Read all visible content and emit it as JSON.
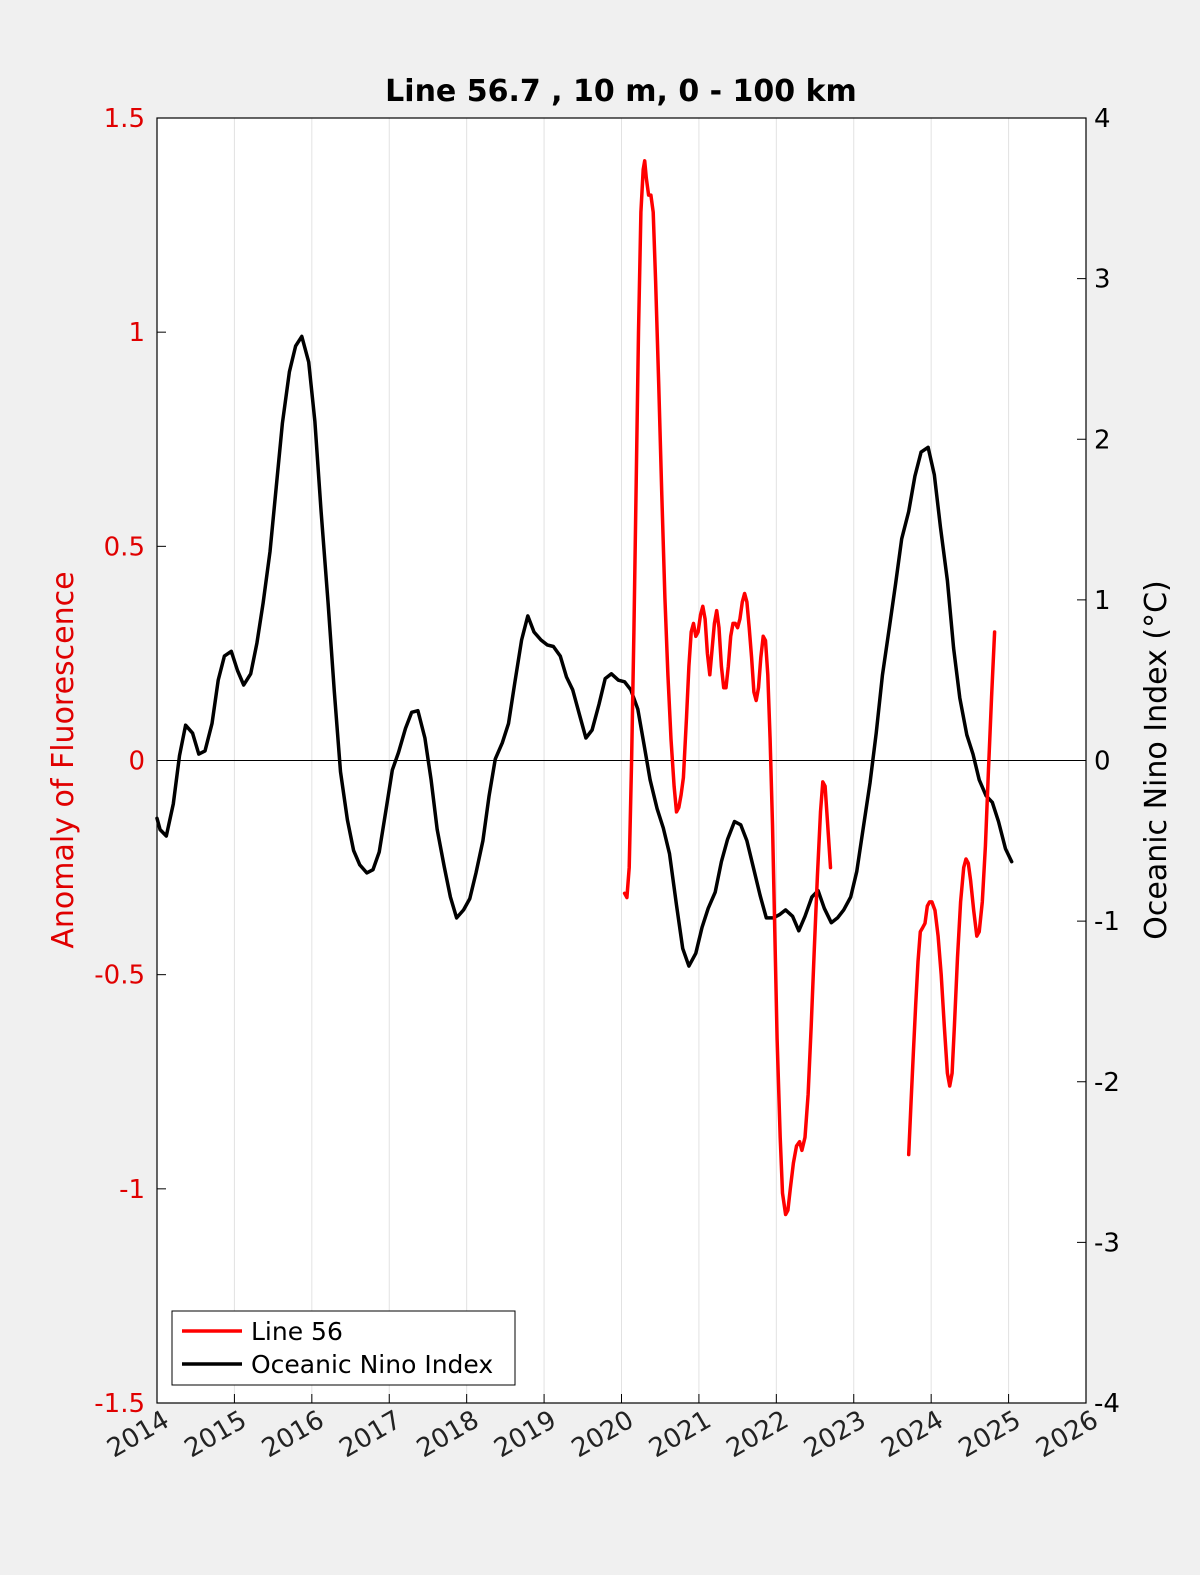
{
  "chart_data": {
    "type": "line",
    "title": "Line 56.7 , 10 m, 0 - 100 km",
    "xlabel": "",
    "ylabel_left": "Anomaly of Fluorescence",
    "ylabel_right": "Oceanic Nino Index (°C)",
    "xlim": [
      2014,
      2026
    ],
    "ylim_left": [
      -1.5,
      1.5
    ],
    "ylim_right": [
      -4,
      4
    ],
    "x_ticks": [
      2014,
      2015,
      2016,
      2017,
      2018,
      2019,
      2020,
      2021,
      2022,
      2023,
      2024,
      2025,
      2026
    ],
    "x_tick_labels": [
      "2014",
      "2015",
      "2016",
      "2017",
      "2018",
      "2019",
      "2020",
      "2021",
      "2022",
      "2023",
      "2024",
      "2025",
      "2026"
    ],
    "y_left_ticks": [
      -1.5,
      -1,
      -0.5,
      0,
      0.5,
      1,
      1.5
    ],
    "y_left_tick_labels": [
      "-1.5",
      "-1",
      "-0.5",
      "0",
      "0.5",
      "1",
      "1.5"
    ],
    "y_right_ticks": [
      -4,
      -3,
      -2,
      -1,
      0,
      1,
      2,
      3,
      4
    ],
    "y_right_tick_labels": [
      "-4",
      "-3",
      "-2",
      "-1",
      "0",
      "1",
      "2",
      "3",
      "4"
    ],
    "grid": "x-only",
    "zero_line": true,
    "legend_position": "bottom-left",
    "colors": {
      "left_axis": "#e00000",
      "right_axis": "#000000",
      "grid": "#e2e2e2",
      "figure_bg": "#f0f0f0",
      "axes_bg": "#ffffff"
    },
    "series": [
      {
        "name": "Line 56",
        "axis": "left",
        "color": "#ff0000",
        "segments": [
          [
            [
              2020.04,
              -0.31
            ],
            [
              2020.07,
              -0.32
            ],
            [
              2020.1,
              -0.25
            ],
            [
              2020.13,
              0.0
            ],
            [
              2020.16,
              0.3
            ],
            [
              2020.19,
              0.65
            ],
            [
              2020.22,
              1.0
            ],
            [
              2020.25,
              1.28
            ],
            [
              2020.28,
              1.38
            ],
            [
              2020.3,
              1.4
            ],
            [
              2020.32,
              1.36
            ],
            [
              2020.35,
              1.32
            ],
            [
              2020.38,
              1.32
            ],
            [
              2020.41,
              1.28
            ],
            [
              2020.44,
              1.12
            ],
            [
              2020.48,
              0.88
            ],
            [
              2020.52,
              0.62
            ],
            [
              2020.56,
              0.38
            ],
            [
              2020.6,
              0.2
            ],
            [
              2020.64,
              0.05
            ],
            [
              2020.68,
              -0.06
            ],
            [
              2020.71,
              -0.12
            ],
            [
              2020.74,
              -0.11
            ],
            [
              2020.77,
              -0.08
            ],
            [
              2020.8,
              -0.04
            ],
            [
              2020.84,
              0.1
            ],
            [
              2020.87,
              0.22
            ],
            [
              2020.9,
              0.3
            ],
            [
              2020.93,
              0.32
            ],
            [
              2020.96,
              0.29
            ],
            [
              2020.99,
              0.3
            ],
            [
              2021.02,
              0.34
            ],
            [
              2021.05,
              0.36
            ],
            [
              2021.08,
              0.33
            ],
            [
              2021.11,
              0.25
            ],
            [
              2021.14,
              0.2
            ],
            [
              2021.17,
              0.26
            ],
            [
              2021.2,
              0.32
            ],
            [
              2021.23,
              0.35
            ],
            [
              2021.26,
              0.31
            ],
            [
              2021.29,
              0.22
            ],
            [
              2021.32,
              0.17
            ],
            [
              2021.35,
              0.17
            ],
            [
              2021.38,
              0.22
            ],
            [
              2021.41,
              0.29
            ],
            [
              2021.44,
              0.32
            ],
            [
              2021.47,
              0.32
            ],
            [
              2021.5,
              0.31
            ],
            [
              2021.53,
              0.33
            ],
            [
              2021.56,
              0.37
            ],
            [
              2021.59,
              0.39
            ],
            [
              2021.62,
              0.37
            ],
            [
              2021.65,
              0.31
            ],
            [
              2021.68,
              0.24
            ],
            [
              2021.71,
              0.16
            ],
            [
              2021.74,
              0.14
            ],
            [
              2021.77,
              0.17
            ],
            [
              2021.8,
              0.24
            ],
            [
              2021.83,
              0.29
            ],
            [
              2021.86,
              0.28
            ],
            [
              2021.89,
              0.2
            ],
            [
              2021.92,
              0.05
            ],
            [
              2021.95,
              -0.15
            ],
            [
              2021.98,
              -0.4
            ],
            [
              2022.01,
              -0.65
            ],
            [
              2022.05,
              -0.88
            ],
            [
              2022.08,
              -1.01
            ],
            [
              2022.12,
              -1.06
            ],
            [
              2022.15,
              -1.05
            ],
            [
              2022.18,
              -1.0
            ],
            [
              2022.22,
              -0.94
            ],
            [
              2022.26,
              -0.9
            ],
            [
              2022.3,
              -0.89
            ],
            [
              2022.33,
              -0.91
            ],
            [
              2022.37,
              -0.88
            ],
            [
              2022.41,
              -0.78
            ],
            [
              2022.45,
              -0.62
            ],
            [
              2022.49,
              -0.44
            ],
            [
              2022.53,
              -0.27
            ],
            [
              2022.57,
              -0.12
            ],
            [
              2022.6,
              -0.05
            ],
            [
              2022.63,
              -0.06
            ],
            [
              2022.66,
              -0.14
            ],
            [
              2022.7,
              -0.25
            ]
          ],
          [
            [
              2023.71,
              -0.92
            ],
            [
              2023.74,
              -0.8
            ],
            [
              2023.77,
              -0.68
            ],
            [
              2023.8,
              -0.57
            ],
            [
              2023.83,
              -0.47
            ],
            [
              2023.86,
              -0.4
            ],
            [
              2023.89,
              -0.39
            ],
            [
              2023.92,
              -0.38
            ],
            [
              2023.95,
              -0.34
            ],
            [
              2023.98,
              -0.33
            ],
            [
              2024.01,
              -0.33
            ],
            [
              2024.05,
              -0.35
            ],
            [
              2024.09,
              -0.41
            ],
            [
              2024.13,
              -0.5
            ],
            [
              2024.17,
              -0.62
            ],
            [
              2024.21,
              -0.73
            ],
            [
              2024.24,
              -0.76
            ],
            [
              2024.27,
              -0.73
            ],
            [
              2024.3,
              -0.62
            ],
            [
              2024.34,
              -0.46
            ],
            [
              2024.38,
              -0.33
            ],
            [
              2024.42,
              -0.25
            ],
            [
              2024.45,
              -0.23
            ],
            [
              2024.48,
              -0.24
            ],
            [
              2024.51,
              -0.28
            ],
            [
              2024.55,
              -0.35
            ],
            [
              2024.59,
              -0.41
            ],
            [
              2024.62,
              -0.4
            ],
            [
              2024.66,
              -0.33
            ],
            [
              2024.7,
              -0.2
            ],
            [
              2024.74,
              -0.02
            ],
            [
              2024.78,
              0.15
            ],
            [
              2024.82,
              0.3
            ]
          ]
        ]
      },
      {
        "name": "Oceanic Nino Index",
        "axis": "right",
        "color": "#000000",
        "segments": [
          [
            [
              2014.0,
              -0.36
            ],
            [
              2014.04,
              -0.43
            ],
            [
              2014.12,
              -0.47
            ],
            [
              2014.21,
              -0.27
            ],
            [
              2014.29,
              0.03
            ],
            [
              2014.37,
              0.22
            ],
            [
              2014.46,
              0.17
            ],
            [
              2014.54,
              0.04
            ],
            [
              2014.62,
              0.06
            ],
            [
              2014.71,
              0.23
            ],
            [
              2014.79,
              0.5
            ],
            [
              2014.87,
              0.65
            ],
            [
              2014.96,
              0.68
            ],
            [
              2015.04,
              0.56
            ],
            [
              2015.12,
              0.47
            ],
            [
              2015.21,
              0.54
            ],
            [
              2015.29,
              0.73
            ],
            [
              2015.37,
              0.98
            ],
            [
              2015.46,
              1.3
            ],
            [
              2015.54,
              1.7
            ],
            [
              2015.62,
              2.1
            ],
            [
              2015.71,
              2.42
            ],
            [
              2015.79,
              2.58
            ],
            [
              2015.87,
              2.64
            ],
            [
              2015.96,
              2.48
            ],
            [
              2016.04,
              2.11
            ],
            [
              2016.12,
              1.55
            ],
            [
              2016.21,
              0.98
            ],
            [
              2016.29,
              0.43
            ],
            [
              2016.37,
              -0.07
            ],
            [
              2016.46,
              -0.37
            ],
            [
              2016.54,
              -0.56
            ],
            [
              2016.62,
              -0.65
            ],
            [
              2016.71,
              -0.7
            ],
            [
              2016.79,
              -0.68
            ],
            [
              2016.87,
              -0.57
            ],
            [
              2016.96,
              -0.3
            ],
            [
              2017.04,
              -0.06
            ],
            [
              2017.12,
              0.05
            ],
            [
              2017.21,
              0.2
            ],
            [
              2017.29,
              0.3
            ],
            [
              2017.37,
              0.31
            ],
            [
              2017.46,
              0.14
            ],
            [
              2017.54,
              -0.12
            ],
            [
              2017.62,
              -0.43
            ],
            [
              2017.71,
              -0.66
            ],
            [
              2017.79,
              -0.85
            ],
            [
              2017.87,
              -0.98
            ],
            [
              2017.96,
              -0.93
            ],
            [
              2018.04,
              -0.86
            ],
            [
              2018.12,
              -0.7
            ],
            [
              2018.21,
              -0.5
            ],
            [
              2018.29,
              -0.22
            ],
            [
              2018.37,
              0.01
            ],
            [
              2018.46,
              0.11
            ],
            [
              2018.54,
              0.23
            ],
            [
              2018.62,
              0.48
            ],
            [
              2018.71,
              0.75
            ],
            [
              2018.79,
              0.9
            ],
            [
              2018.87,
              0.8
            ],
            [
              2018.96,
              0.75
            ],
            [
              2019.04,
              0.72
            ],
            [
              2019.12,
              0.71
            ],
            [
              2019.21,
              0.65
            ],
            [
              2019.29,
              0.52
            ],
            [
              2019.37,
              0.44
            ],
            [
              2019.46,
              0.28
            ],
            [
              2019.54,
              0.14
            ],
            [
              2019.62,
              0.19
            ],
            [
              2019.71,
              0.35
            ],
            [
              2019.79,
              0.51
            ],
            [
              2019.87,
              0.54
            ],
            [
              2019.96,
              0.5
            ],
            [
              2020.04,
              0.49
            ],
            [
              2020.12,
              0.44
            ],
            [
              2020.21,
              0.32
            ],
            [
              2020.29,
              0.1
            ],
            [
              2020.37,
              -0.12
            ],
            [
              2020.46,
              -0.3
            ],
            [
              2020.54,
              -0.42
            ],
            [
              2020.62,
              -0.58
            ],
            [
              2020.71,
              -0.9
            ],
            [
              2020.79,
              -1.17
            ],
            [
              2020.87,
              -1.28
            ],
            [
              2020.96,
              -1.2
            ],
            [
              2021.04,
              -1.04
            ],
            [
              2021.12,
              -0.92
            ],
            [
              2021.21,
              -0.82
            ],
            [
              2021.29,
              -0.63
            ],
            [
              2021.37,
              -0.49
            ],
            [
              2021.46,
              -0.38
            ],
            [
              2021.54,
              -0.4
            ],
            [
              2021.62,
              -0.5
            ],
            [
              2021.71,
              -0.68
            ],
            [
              2021.79,
              -0.84
            ],
            [
              2021.87,
              -0.98
            ],
            [
              2021.96,
              -0.98
            ],
            [
              2022.04,
              -0.96
            ],
            [
              2022.12,
              -0.93
            ],
            [
              2022.21,
              -0.97
            ],
            [
              2022.29,
              -1.06
            ],
            [
              2022.37,
              -0.97
            ],
            [
              2022.46,
              -0.85
            ],
            [
              2022.54,
              -0.81
            ],
            [
              2022.62,
              -0.92
            ],
            [
              2022.71,
              -1.01
            ],
            [
              2022.79,
              -0.98
            ],
            [
              2022.87,
              -0.93
            ],
            [
              2022.96,
              -0.85
            ],
            [
              2023.04,
              -0.69
            ],
            [
              2023.12,
              -0.43
            ],
            [
              2023.21,
              -0.14
            ],
            [
              2023.29,
              0.17
            ],
            [
              2023.37,
              0.53
            ],
            [
              2023.46,
              0.83
            ],
            [
              2023.54,
              1.1
            ],
            [
              2023.62,
              1.38
            ],
            [
              2023.71,
              1.55
            ],
            [
              2023.79,
              1.77
            ],
            [
              2023.87,
              1.92
            ],
            [
              2023.96,
              1.95
            ],
            [
              2024.04,
              1.78
            ],
            [
              2024.12,
              1.45
            ],
            [
              2024.21,
              1.12
            ],
            [
              2024.29,
              0.7
            ],
            [
              2024.37,
              0.39
            ],
            [
              2024.46,
              0.16
            ],
            [
              2024.54,
              0.04
            ],
            [
              2024.62,
              -0.12
            ],
            [
              2024.71,
              -0.22
            ],
            [
              2024.79,
              -0.26
            ],
            [
              2024.87,
              -0.38
            ],
            [
              2024.96,
              -0.55
            ],
            [
              2025.04,
              -0.63
            ]
          ]
        ]
      }
    ]
  }
}
